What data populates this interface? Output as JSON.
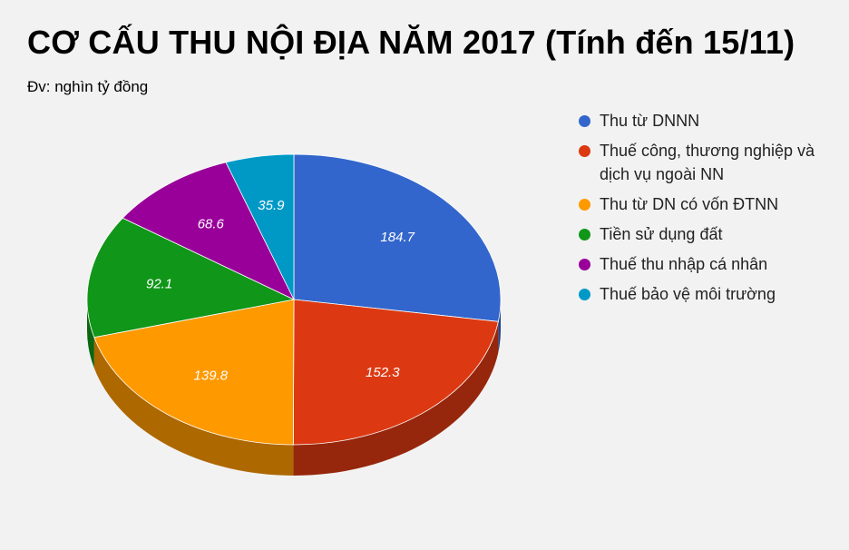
{
  "title": "CƠ CẤU THU NỘI ĐỊA NĂM 2017 (Tính đến 15/11)",
  "subtitle": "Đv: nghìn tỷ đồng",
  "chart_data": {
    "type": "pie",
    "title": "CƠ CẤU THU NỘI ĐỊA NĂM 2017 (Tính đến 15/11)",
    "subtitle": "Đv: nghìn tỷ đồng",
    "style": "3d",
    "legend_position": "right",
    "slices": [
      {
        "label": "Thu từ DNNN",
        "value": 184.7,
        "value_label": "184.7",
        "color": "#3366cc"
      },
      {
        "label": "Thuế công, thương nghiệp và dịch vụ ngoài NN",
        "value": 152.3,
        "value_label": "152.3",
        "color": "#dc3912"
      },
      {
        "label": "Thu từ DN có vốn ĐTNN",
        "value": 139.8,
        "value_label": "139.8",
        "color": "#ff9900"
      },
      {
        "label": "Tiền sử dụng đất",
        "value": 92.1,
        "value_label": "92.1",
        "color": "#109618"
      },
      {
        "label": "Thuế thu nhập cá nhân",
        "value": 68.6,
        "value_label": "68.6",
        "color": "#990099"
      },
      {
        "label": "Thuế bảo vệ môi trường",
        "value": 35.9,
        "value_label": "35.9",
        "color": "#0099c6"
      }
    ]
  }
}
